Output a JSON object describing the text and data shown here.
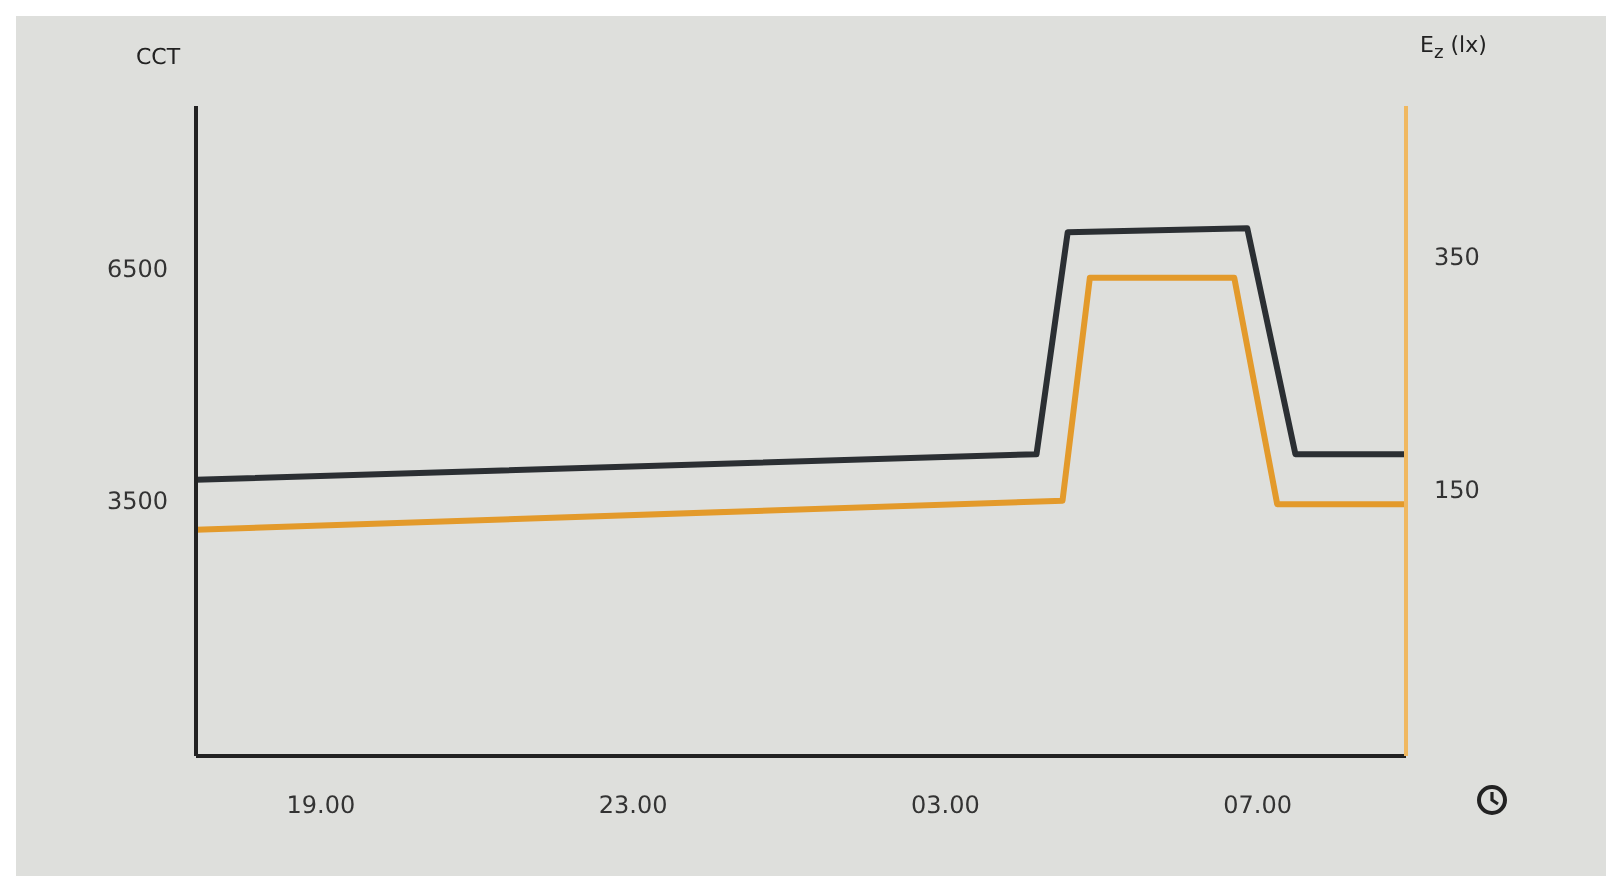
{
  "chart_data": {
    "type": "line",
    "ylabel": "CCT",
    "y2label": "E$_{z}$ (lx)",
    "xlim": [
      "--01-01T17:24",
      "--01-02T08:54"
    ],
    "xticks": [
      {
        "value": "--01-01T19:00",
        "label": "19.00"
      },
      {
        "value": "--01-01T23:00",
        "label": "23.00"
      },
      {
        "value": "--01-02T03:00",
        "label": "03.00"
      },
      {
        "value": "--01-02T07:00",
        "label": "07.00"
      }
    ],
    "ylim": [
      200,
      8600
    ],
    "yticks": [
      3500,
      6500
    ],
    "y2lim": [
      -80,
      480
    ],
    "y2ticks": [
      150,
      350
    ],
    "series": [
      {
        "color": "#2b2f33",
        "x": [
          "--01-01T17:24",
          "--01-02T04:10",
          "--01-02T04:34",
          "--01-02T06:52",
          "--01-02T07:29",
          "--01-02T08:54"
        ],
        "values": [
          3770,
          4100,
          6970,
          7020,
          4100,
          4100
        ]
      },
      {
        "color": "#e39a2b",
        "axis": "y2",
        "x": [
          "--01-01T17:24",
          "--01-02T04:30",
          "--01-02T04:51",
          "--01-02T06:42",
          "--01-02T07:15",
          "--01-02T08:54"
        ],
        "values": [
          115,
          140,
          332,
          332,
          137,
          137
        ]
      }
    ],
    "grid": false,
    "marker": "none",
    "line_style": "solid"
  }
}
